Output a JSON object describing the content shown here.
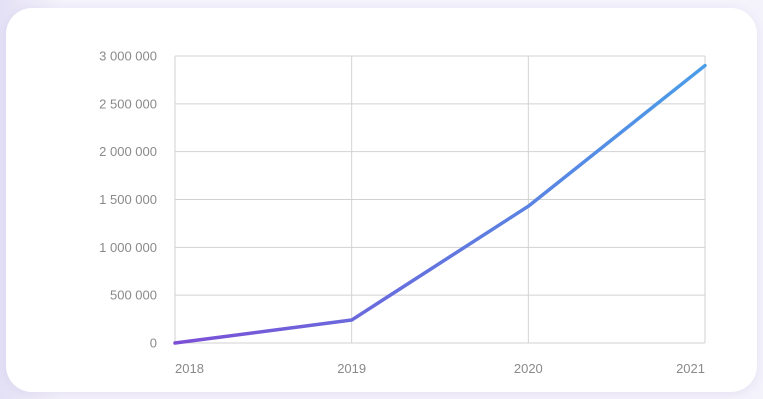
{
  "chart_data": {
    "type": "line",
    "x": [
      "2018",
      "2019",
      "2020",
      "2021"
    ],
    "series": [
      {
        "values": [
          0,
          240000,
          1430000,
          2900000
        ]
      }
    ],
    "y_ticks": [
      0,
      500000,
      1000000,
      1500000,
      2000000,
      2500000,
      3000000
    ],
    "y_tick_labels": [
      "0",
      "500 000",
      "1 000 000",
      "1 500 000",
      "2 000 000",
      "2 500 000",
      "3 000 000"
    ],
    "x_tick_labels": [
      "2018",
      "2019",
      "2020",
      "2021"
    ],
    "ylim": [
      0,
      3000000
    ],
    "grid": true,
    "line_gradient": [
      "#7b4fd6",
      "#4a9de8"
    ],
    "grid_color": "#d2d2d2",
    "label_color": "#8a8a8a"
  }
}
